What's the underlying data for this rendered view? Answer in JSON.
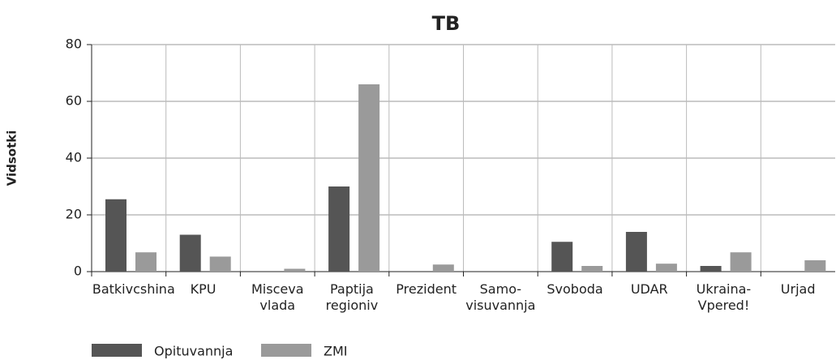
{
  "chart_data": {
    "type": "bar",
    "title": "TB",
    "y_label": "Vidsotki",
    "categories": [
      "Batkivcshina",
      "KPU",
      "Misceva vlada",
      "Paptija regioniv",
      "Prezident",
      "Samo-visuvannja",
      "Svoboda",
      "UDAR",
      "Ukraina-Vpered!",
      "Urjad"
    ],
    "series": [
      {
        "name": "Opituvannja",
        "color": "#555555",
        "values": [
          25.5,
          13,
          0,
          30,
          0,
          0,
          10.5,
          14,
          2,
          0
        ]
      },
      {
        "name": "ZMI",
        "color": "#9a9a9a",
        "values": [
          6.8,
          5.3,
          1,
          66,
          2.5,
          0,
          2,
          2.8,
          6.8,
          4
        ]
      }
    ],
    "ylim": [
      0,
      80
    ],
    "yticks": [
      0,
      20,
      40,
      60,
      80
    ],
    "grid": true
  }
}
